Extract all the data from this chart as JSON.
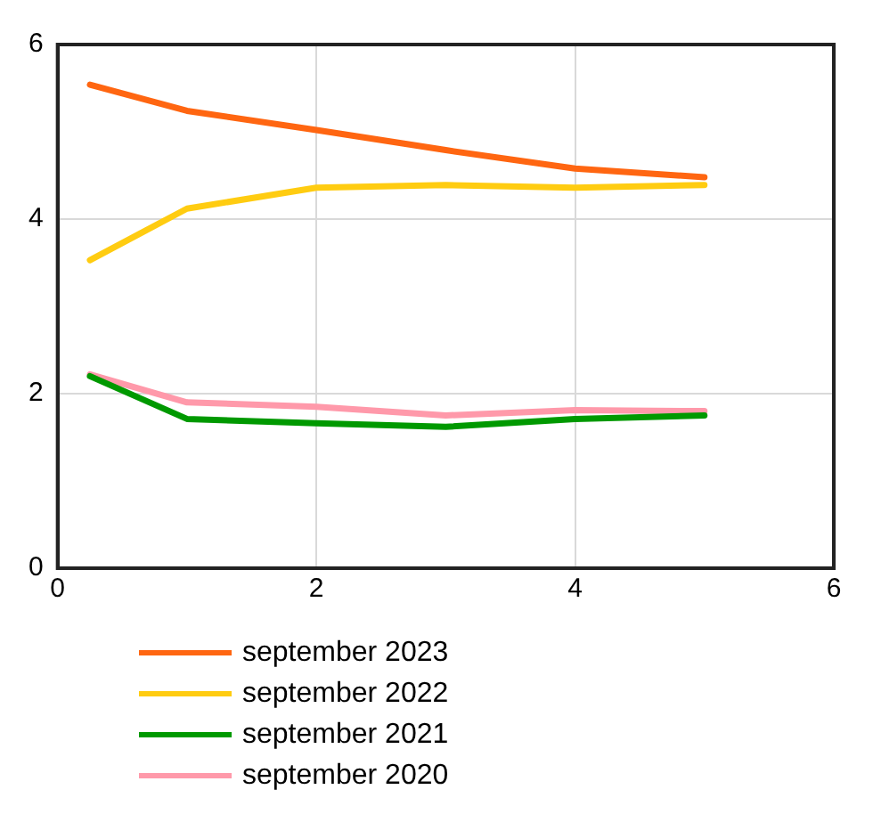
{
  "chart_data": {
    "type": "line",
    "x": [
      0.25,
      1,
      2,
      3,
      4,
      5
    ],
    "series": [
      {
        "name": "september 2023",
        "color": "#ff6611",
        "values": [
          5.54,
          5.24,
          5.02,
          4.79,
          4.58,
          4.48
        ]
      },
      {
        "name": "september 2022",
        "color": "#ffcc11",
        "values": [
          3.53,
          4.12,
          4.36,
          4.39,
          4.36,
          4.39
        ]
      },
      {
        "name": "september 2021",
        "color": "#009900",
        "values": [
          2.2,
          1.71,
          1.66,
          1.62,
          1.71,
          1.75
        ]
      },
      {
        "name": "september 2020",
        "color": "#ff99aa",
        "values": [
          2.22,
          1.9,
          1.85,
          1.75,
          1.81,
          1.8
        ]
      }
    ],
    "xlim": [
      0,
      6
    ],
    "xticks": [
      0,
      2,
      4,
      6
    ],
    "ylim": [
      0,
      6
    ],
    "yticks": [
      0,
      2,
      4,
      6
    ],
    "grid": true,
    "legend": "bottom",
    "marker": "none",
    "line_style": "solid"
  }
}
